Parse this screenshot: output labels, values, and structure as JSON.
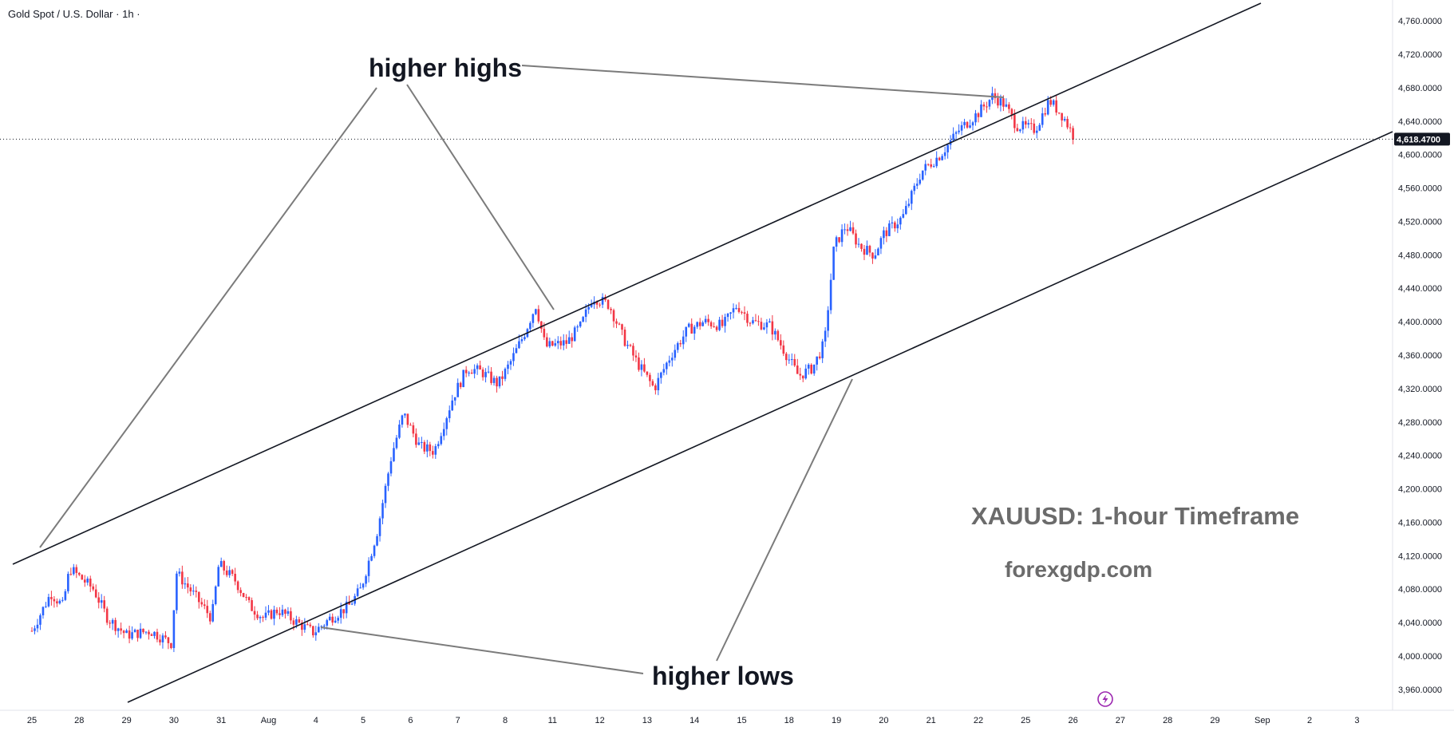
{
  "header": {
    "symbol": "Gold Spot / U.S. Dollar",
    "separator": "·",
    "interval": "1h",
    "status_dot": "·"
  },
  "annotations": {
    "higher_highs": "higher highs",
    "higher_lows": "higher lows",
    "timeframe_label": "XAUUSD: 1-hour Timeframe",
    "watermark": "forexgdp.com"
  },
  "colors": {
    "up_candle": "#2962ff",
    "down_candle": "#f23645",
    "trendline": "#131722",
    "arrow_line": "#7b7b7b",
    "annotation_text": "#131722",
    "watermark_text": "#6b6b6b",
    "price_tag_bg": "#131722",
    "lightning_icon": "#9c27b0"
  },
  "icons": {
    "replay": "lightning-icon"
  },
  "chart_data": {
    "type": "candlestick",
    "title": "Gold Spot / U.S. Dollar",
    "interval": "1h",
    "last_price": 4618.47,
    "last_price_label": "4,618.4700",
    "ylim": [
      3935,
      4785
    ],
    "y_ticks": [
      3960,
      4000,
      4040,
      4080,
      4120,
      4160,
      4200,
      4240,
      4280,
      4320,
      4360,
      4400,
      4440,
      4480,
      4520,
      4560,
      4600,
      4640,
      4680,
      4720,
      4760
    ],
    "y_tick_labels": [
      "3,960.0000",
      "4,000.0000",
      "4,040.0000",
      "4,080.0000",
      "4,120.0000",
      "4,160.0000",
      "4,200.0000",
      "4,240.0000",
      "4,280.0000",
      "4,320.0000",
      "4,360.0000",
      "4,400.0000",
      "4,440.0000",
      "4,480.0000",
      "4,520.0000",
      "4,560.0000",
      "4,600.0000",
      "4,640.0000",
      "4,680.0000",
      "4,720.0000",
      "4,760.0000"
    ],
    "x_ticks": [
      "25",
      "28",
      "29",
      "30",
      "31",
      "Aug",
      "4",
      "5",
      "6",
      "7",
      "8",
      "11",
      "12",
      "13",
      "14",
      "15",
      "18",
      "19",
      "20",
      "21",
      "22",
      "25",
      "26",
      "27",
      "28",
      "29",
      "Sep",
      "2",
      "3"
    ],
    "close_anchors": [
      {
        "d": 0.0,
        "p": 4030
      },
      {
        "d": 0.4,
        "p": 4075
      },
      {
        "d": 0.65,
        "p": 4060
      },
      {
        "d": 0.8,
        "p": 4105
      },
      {
        "d": 1.3,
        "p": 4080
      },
      {
        "d": 1.6,
        "p": 4045
      },
      {
        "d": 2.0,
        "p": 4025
      },
      {
        "d": 2.5,
        "p": 4030
      },
      {
        "d": 2.95,
        "p": 4015
      },
      {
        "d": 3.05,
        "p": 4100
      },
      {
        "d": 3.4,
        "p": 4075
      },
      {
        "d": 3.8,
        "p": 4045
      },
      {
        "d": 3.95,
        "p": 4110
      },
      {
        "d": 4.3,
        "p": 4090
      },
      {
        "d": 4.6,
        "p": 4060
      },
      {
        "d": 4.9,
        "p": 4045
      },
      {
        "d": 5.2,
        "p": 4055
      },
      {
        "d": 5.6,
        "p": 4040
      },
      {
        "d": 5.95,
        "p": 4028
      },
      {
        "d": 6.3,
        "p": 4045
      },
      {
        "d": 6.7,
        "p": 4060
      },
      {
        "d": 6.95,
        "p": 4080
      },
      {
        "d": 7.3,
        "p": 4150
      },
      {
        "d": 7.6,
        "p": 4240
      },
      {
        "d": 7.85,
        "p": 4290
      },
      {
        "d": 8.2,
        "p": 4250
      },
      {
        "d": 8.5,
        "p": 4245
      },
      {
        "d": 8.9,
        "p": 4310
      },
      {
        "d": 9.2,
        "p": 4345
      },
      {
        "d": 9.5,
        "p": 4340
      },
      {
        "d": 9.85,
        "p": 4325
      },
      {
        "d": 10.1,
        "p": 4350
      },
      {
        "d": 10.4,
        "p": 4385
      },
      {
        "d": 10.65,
        "p": 4420
      },
      {
        "d": 10.85,
        "p": 4370
      },
      {
        "d": 11.3,
        "p": 4375
      },
      {
        "d": 11.6,
        "p": 4395
      },
      {
        "d": 11.85,
        "p": 4430
      },
      {
        "d": 12.2,
        "p": 4420
      },
      {
        "d": 12.5,
        "p": 4380
      },
      {
        "d": 12.8,
        "p": 4350
      },
      {
        "d": 13.15,
        "p": 4320
      },
      {
        "d": 13.5,
        "p": 4360
      },
      {
        "d": 13.85,
        "p": 4390
      },
      {
        "d": 14.2,
        "p": 4400
      },
      {
        "d": 14.6,
        "p": 4395
      },
      {
        "d": 14.9,
        "p": 4420
      },
      {
        "d": 15.2,
        "p": 4400
      },
      {
        "d": 15.6,
        "p": 4395
      },
      {
        "d": 15.9,
        "p": 4365
      },
      {
        "d": 16.2,
        "p": 4335
      },
      {
        "d": 16.5,
        "p": 4345
      },
      {
        "d": 16.75,
        "p": 4375
      },
      {
        "d": 16.95,
        "p": 4490
      },
      {
        "d": 17.2,
        "p": 4515
      },
      {
        "d": 17.5,
        "p": 4490
      },
      {
        "d": 17.8,
        "p": 4480
      },
      {
        "d": 18.0,
        "p": 4505
      },
      {
        "d": 18.4,
        "p": 4525
      },
      {
        "d": 18.8,
        "p": 4580
      },
      {
        "d": 19.2,
        "p": 4600
      },
      {
        "d": 19.6,
        "p": 4630
      },
      {
        "d": 20.0,
        "p": 4650
      },
      {
        "d": 20.3,
        "p": 4670
      },
      {
        "d": 20.55,
        "p": 4660
      },
      {
        "d": 20.8,
        "p": 4635
      },
      {
        "d": 21.2,
        "p": 4630
      },
      {
        "d": 21.5,
        "p": 4665
      },
      {
        "d": 21.8,
        "p": 4645
      },
      {
        "d": 22.05,
        "p": 4618
      }
    ]
  }
}
